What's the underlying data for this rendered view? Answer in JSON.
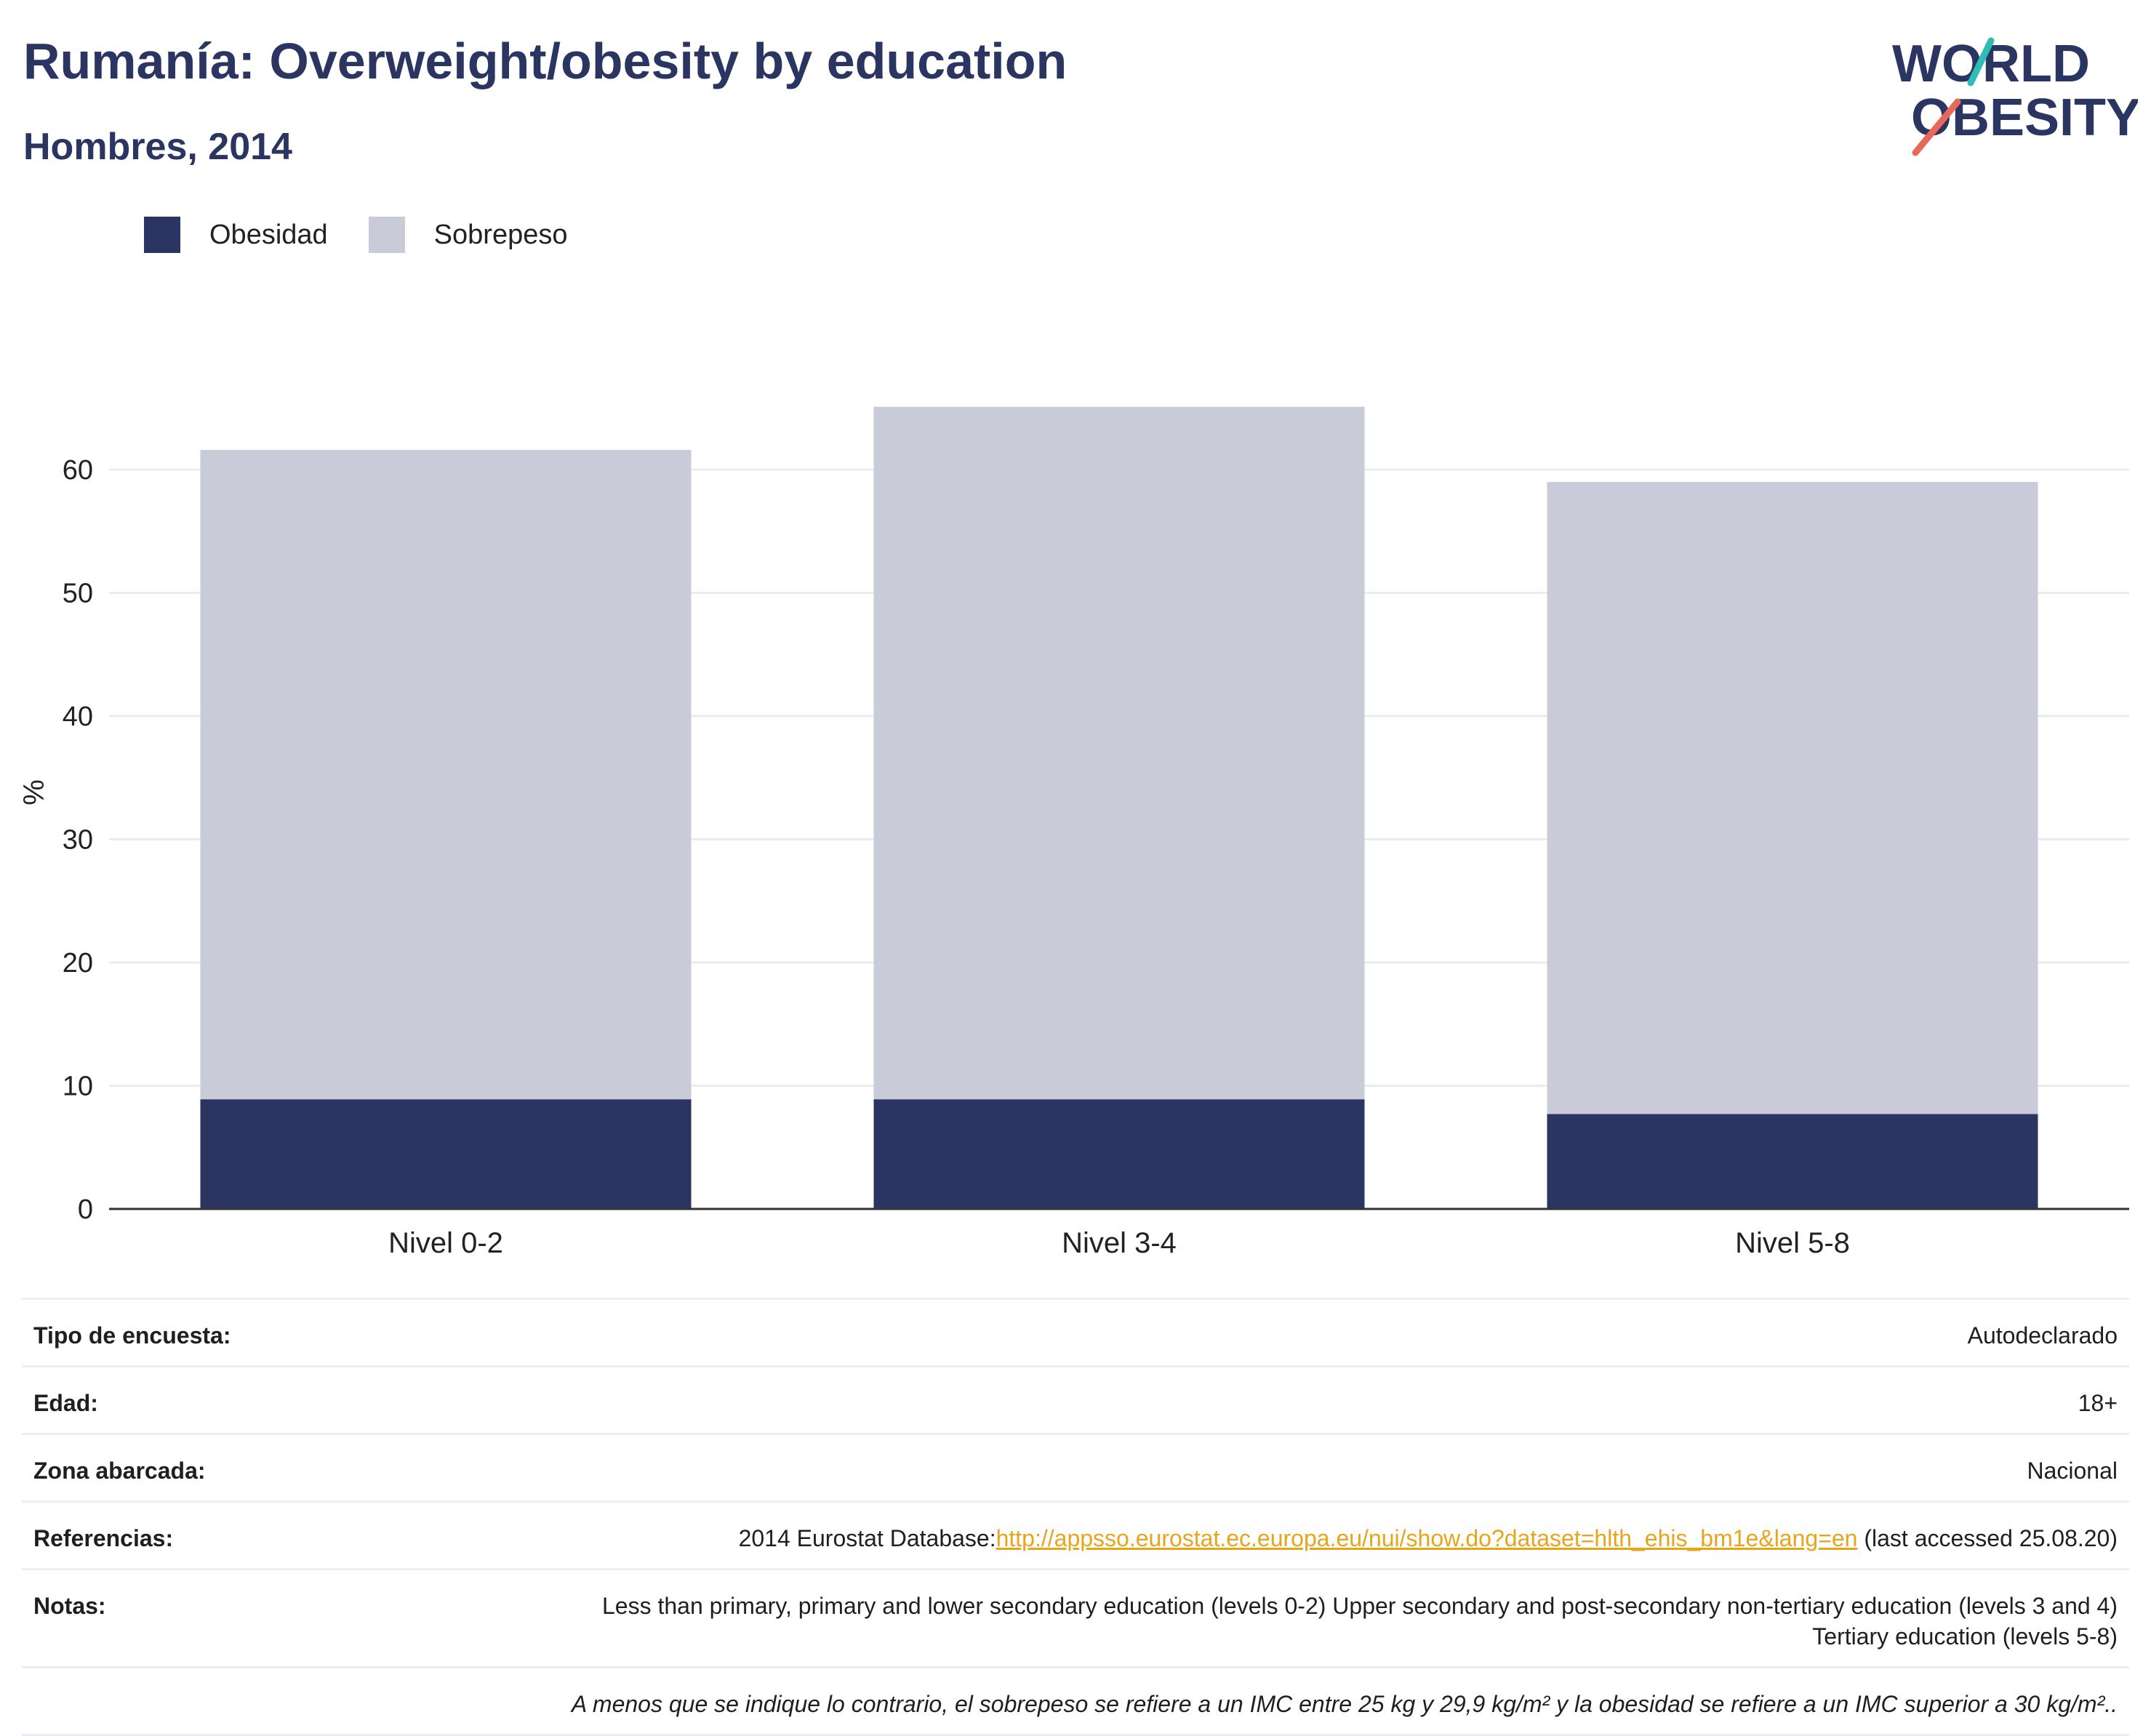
{
  "header": {
    "title": "Rumanía: Overweight/obesity by education",
    "subtitle": "Hombres, 2014"
  },
  "logo": {
    "line1": "WORLD",
    "line2": "OBESITY"
  },
  "colors": {
    "obesity": "#2a3562",
    "overweight": "#c9ccd8",
    "grid": "#e9ebf0",
    "axis": "#333333",
    "link": "#e8a41b",
    "logo_teal": "#2ebcb4",
    "logo_coral": "#e8685a"
  },
  "chart_data": {
    "type": "bar",
    "stacked": true,
    "categories": [
      "Nivel 0-2",
      "Nivel 3-4",
      "Nivel 5-8"
    ],
    "series": [
      {
        "name": "Obesidad",
        "values": [
          8.9,
          8.9,
          7.7
        ]
      },
      {
        "name": "Sobrepeso",
        "values": [
          52.7,
          56.2,
          51.3
        ]
      }
    ],
    "ylabel": "%",
    "xlabel": "",
    "ylim": [
      0,
      70
    ],
    "yticks": [
      0,
      10,
      20,
      30,
      40,
      50,
      60
    ],
    "legend": "top-left",
    "grid": true
  },
  "meta": {
    "rows": [
      {
        "key": "Tipo de encuesta:",
        "value": "Autodeclarado"
      },
      {
        "key": "Edad:",
        "value": "18+"
      },
      {
        "key": "Zona abarcada:",
        "value": "Nacional"
      }
    ],
    "references": {
      "key": "Referencias:",
      "prefix": "2014 Eurostat Database:",
      "link": "http://appsso.eurostat.ec.europa.eu/nui/show.do?dataset=hlth_ehis_bm1e&lang=en",
      "suffix": " (last accessed 25.08.20)"
    },
    "notes": {
      "key": "Notas:",
      "value": "Less than primary, primary and lower secondary education (levels 0-2) Upper secondary and post-secondary non-tertiary education (levels 3 and 4) Tertiary education (levels 5-8)"
    },
    "footnote": "A menos que se indique lo contrario, el sobrepeso se refiere a un IMC entre 25 kg y 29,9 kg/m² y la obesidad se refiere a un IMC superior a 30 kg/m².."
  }
}
